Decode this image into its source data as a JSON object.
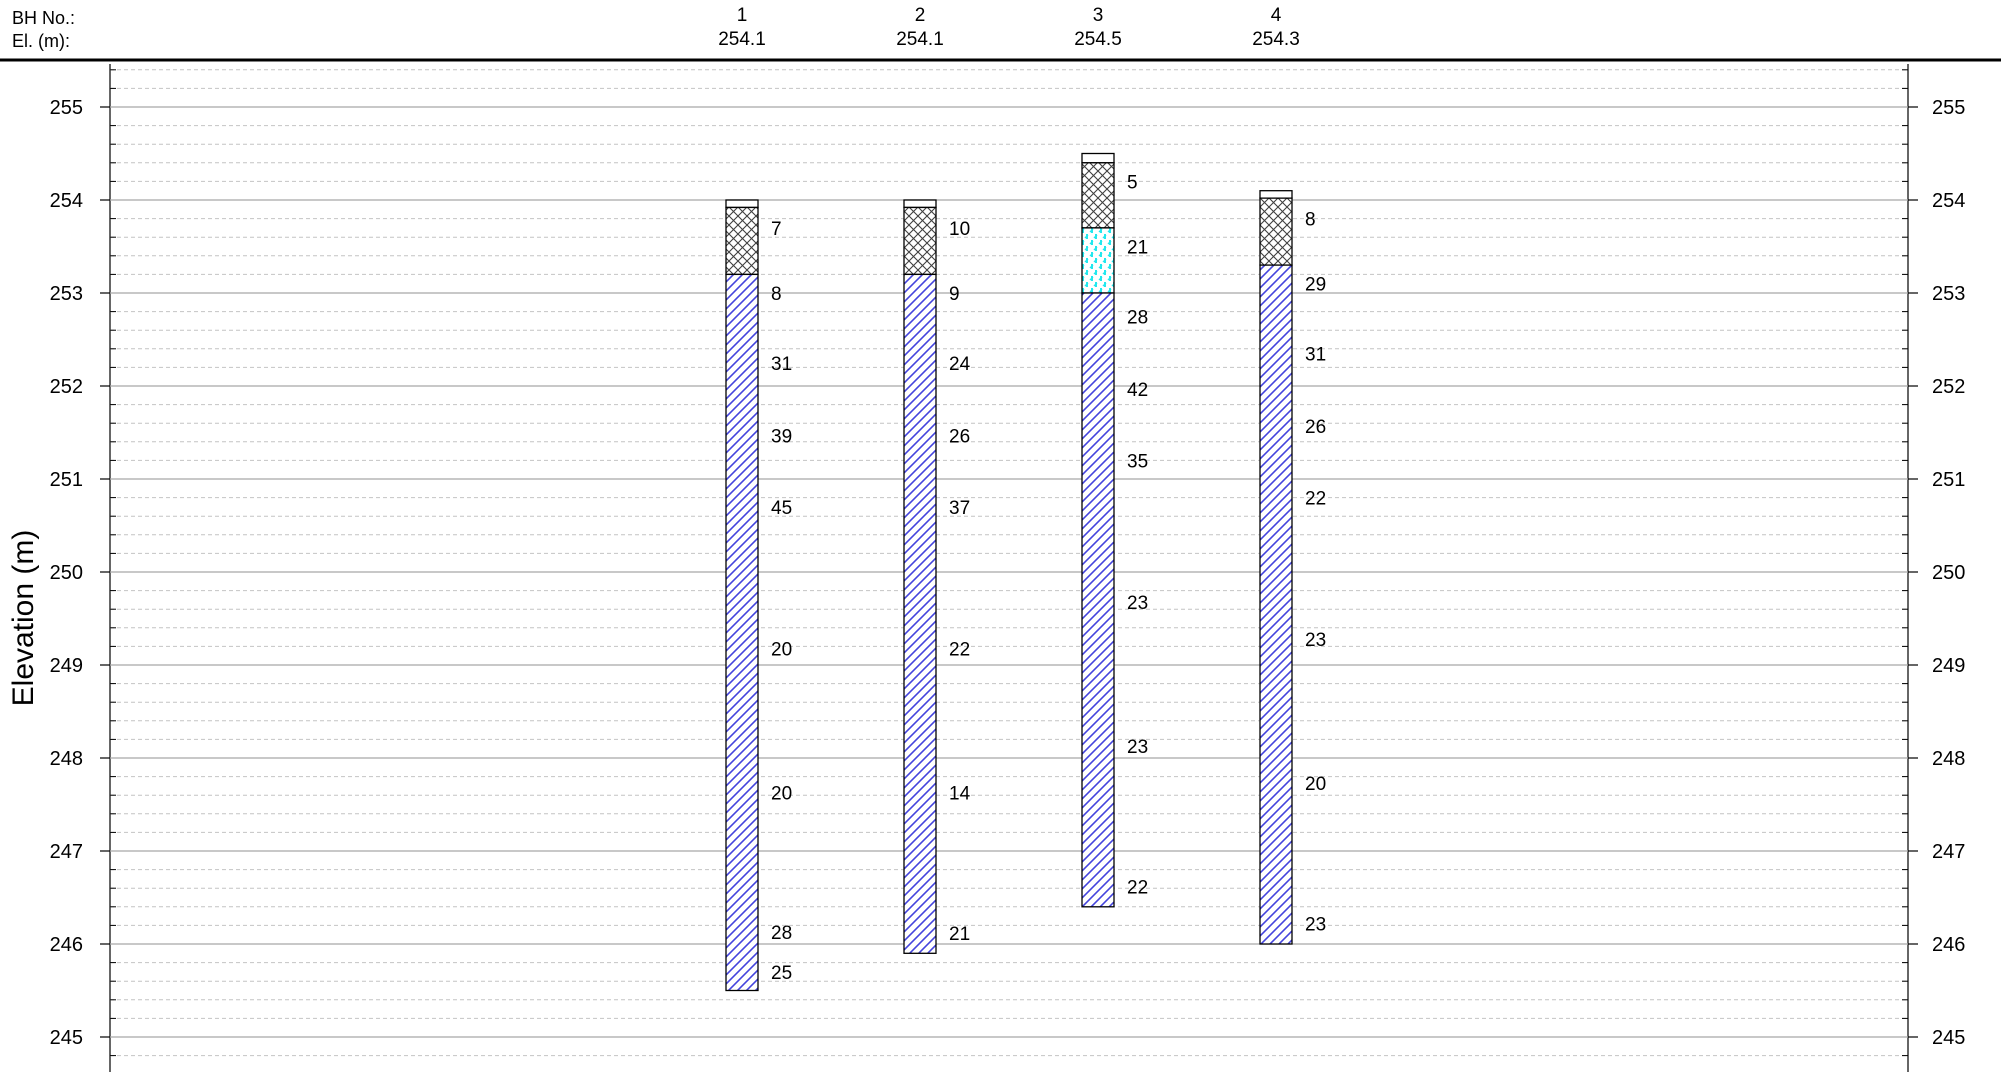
{
  "header": {
    "bh_label": "BH No.:",
    "el_label": "El. (m):"
  },
  "chart_data": {
    "type": "borehole-section",
    "ylabel": "Elevation (m)",
    "ylim": [
      244.6,
      255.5
    ],
    "y_ticks": [
      255,
      254,
      253,
      252,
      251,
      250,
      249,
      248,
      247,
      246,
      245
    ],
    "y_tick_labels": [
      "255",
      "254",
      "253",
      "252",
      "251",
      "250",
      "249",
      "248",
      "247",
      "246",
      "245"
    ],
    "minor_grid_step": 0.2,
    "grid": true,
    "strata_colors": {
      "fill": "#ffffff",
      "crosshatch": "#404040",
      "silt": "#22e8ee",
      "clay": "#4444dd"
    },
    "boreholes": [
      {
        "id": "1",
        "elevation": 254.1,
        "elevation_label": "254.1",
        "layers": [
          {
            "type": "fill",
            "top": 254.0,
            "bottom": 253.92
          },
          {
            "type": "crosshatch",
            "top": 253.92,
            "bottom": 253.2
          },
          {
            "type": "clay",
            "top": 253.2,
            "bottom": 245.5
          }
        ],
        "n_values": [
          {
            "elev": 253.7,
            "label": "7"
          },
          {
            "elev": 253.0,
            "label": "8"
          },
          {
            "elev": 252.25,
            "label": "31"
          },
          {
            "elev": 251.47,
            "label": "39"
          },
          {
            "elev": 250.7,
            "label": "45"
          },
          {
            "elev": 249.18,
            "label": "20"
          },
          {
            "elev": 247.63,
            "label": "20"
          },
          {
            "elev": 246.13,
            "label": "28"
          },
          {
            "elev": 245.7,
            "label": "25"
          }
        ]
      },
      {
        "id": "2",
        "elevation": 254.1,
        "elevation_label": "254.1",
        "layers": [
          {
            "type": "fill",
            "top": 254.0,
            "bottom": 253.92
          },
          {
            "type": "crosshatch",
            "top": 253.92,
            "bottom": 253.2
          },
          {
            "type": "clay",
            "top": 253.2,
            "bottom": 245.9
          }
        ],
        "n_values": [
          {
            "elev": 253.7,
            "label": "10"
          },
          {
            "elev": 253.0,
            "label": "9"
          },
          {
            "elev": 252.25,
            "label": "24"
          },
          {
            "elev": 251.47,
            "label": "26"
          },
          {
            "elev": 250.7,
            "label": "37"
          },
          {
            "elev": 249.18,
            "label": "22"
          },
          {
            "elev": 247.63,
            "label": "14"
          },
          {
            "elev": 246.12,
            "label": "21"
          }
        ]
      },
      {
        "id": "3",
        "elevation": 254.5,
        "elevation_label": "254.5",
        "layers": [
          {
            "type": "fill",
            "top": 254.5,
            "bottom": 254.4
          },
          {
            "type": "crosshatch",
            "top": 254.4,
            "bottom": 253.7
          },
          {
            "type": "silt",
            "top": 253.7,
            "bottom": 253.0
          },
          {
            "type": "clay",
            "top": 253.0,
            "bottom": 246.4
          }
        ],
        "n_values": [
          {
            "elev": 254.2,
            "label": "5"
          },
          {
            "elev": 253.5,
            "label": "21"
          },
          {
            "elev": 252.75,
            "label": "28"
          },
          {
            "elev": 251.97,
            "label": "42"
          },
          {
            "elev": 251.2,
            "label": "35"
          },
          {
            "elev": 249.68,
            "label": "23"
          },
          {
            "elev": 248.13,
            "label": "23"
          },
          {
            "elev": 246.62,
            "label": "22"
          }
        ]
      },
      {
        "id": "4",
        "elevation": 254.3,
        "elevation_label": "254.3",
        "layers": [
          {
            "type": "fill",
            "top": 254.1,
            "bottom": 254.02
          },
          {
            "type": "crosshatch",
            "top": 254.02,
            "bottom": 253.3
          },
          {
            "type": "clay",
            "top": 253.3,
            "bottom": 246.0
          }
        ],
        "n_values": [
          {
            "elev": 253.8,
            "label": "8"
          },
          {
            "elev": 253.1,
            "label": "29"
          },
          {
            "elev": 252.35,
            "label": "31"
          },
          {
            "elev": 251.57,
            "label": "26"
          },
          {
            "elev": 250.8,
            "label": "22"
          },
          {
            "elev": 249.28,
            "label": "23"
          },
          {
            "elev": 247.73,
            "label": "20"
          },
          {
            "elev": 246.22,
            "label": "23"
          }
        ]
      }
    ]
  }
}
